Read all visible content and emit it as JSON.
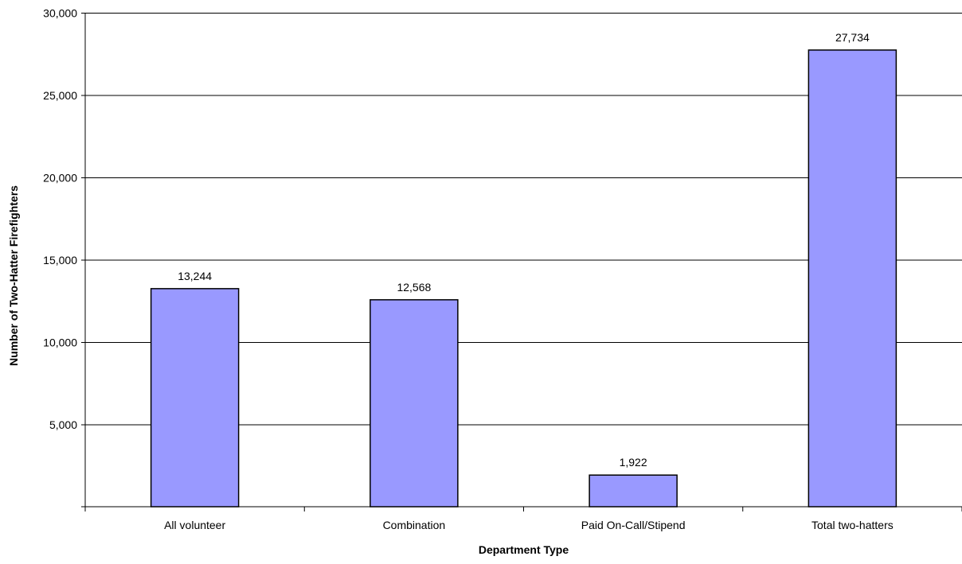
{
  "chart_data": {
    "type": "bar",
    "categories": [
      "All volunteer",
      "Combination",
      "Paid On-Call/Stipend",
      "Total two-hatters"
    ],
    "values": [
      13244,
      12568,
      1922,
      27734
    ],
    "data_labels": [
      "13,244",
      "12,568",
      "1,922",
      "27,734"
    ],
    "xlabel": "Department Type",
    "ylabel": "Number of Two-Hatter Firefighters",
    "ylim": [
      0,
      30000
    ],
    "yticks": [
      5000,
      10000,
      15000,
      20000,
      25000,
      30000
    ],
    "ytick_labels": [
      "5,000",
      "10,000",
      "15,000",
      "20,000",
      "25,000",
      "30,000"
    ],
    "grid": true,
    "legend": "none",
    "colors": {
      "bar_fill": "#9999ff",
      "bar_stroke": "#000000",
      "grid": "#000000"
    }
  }
}
